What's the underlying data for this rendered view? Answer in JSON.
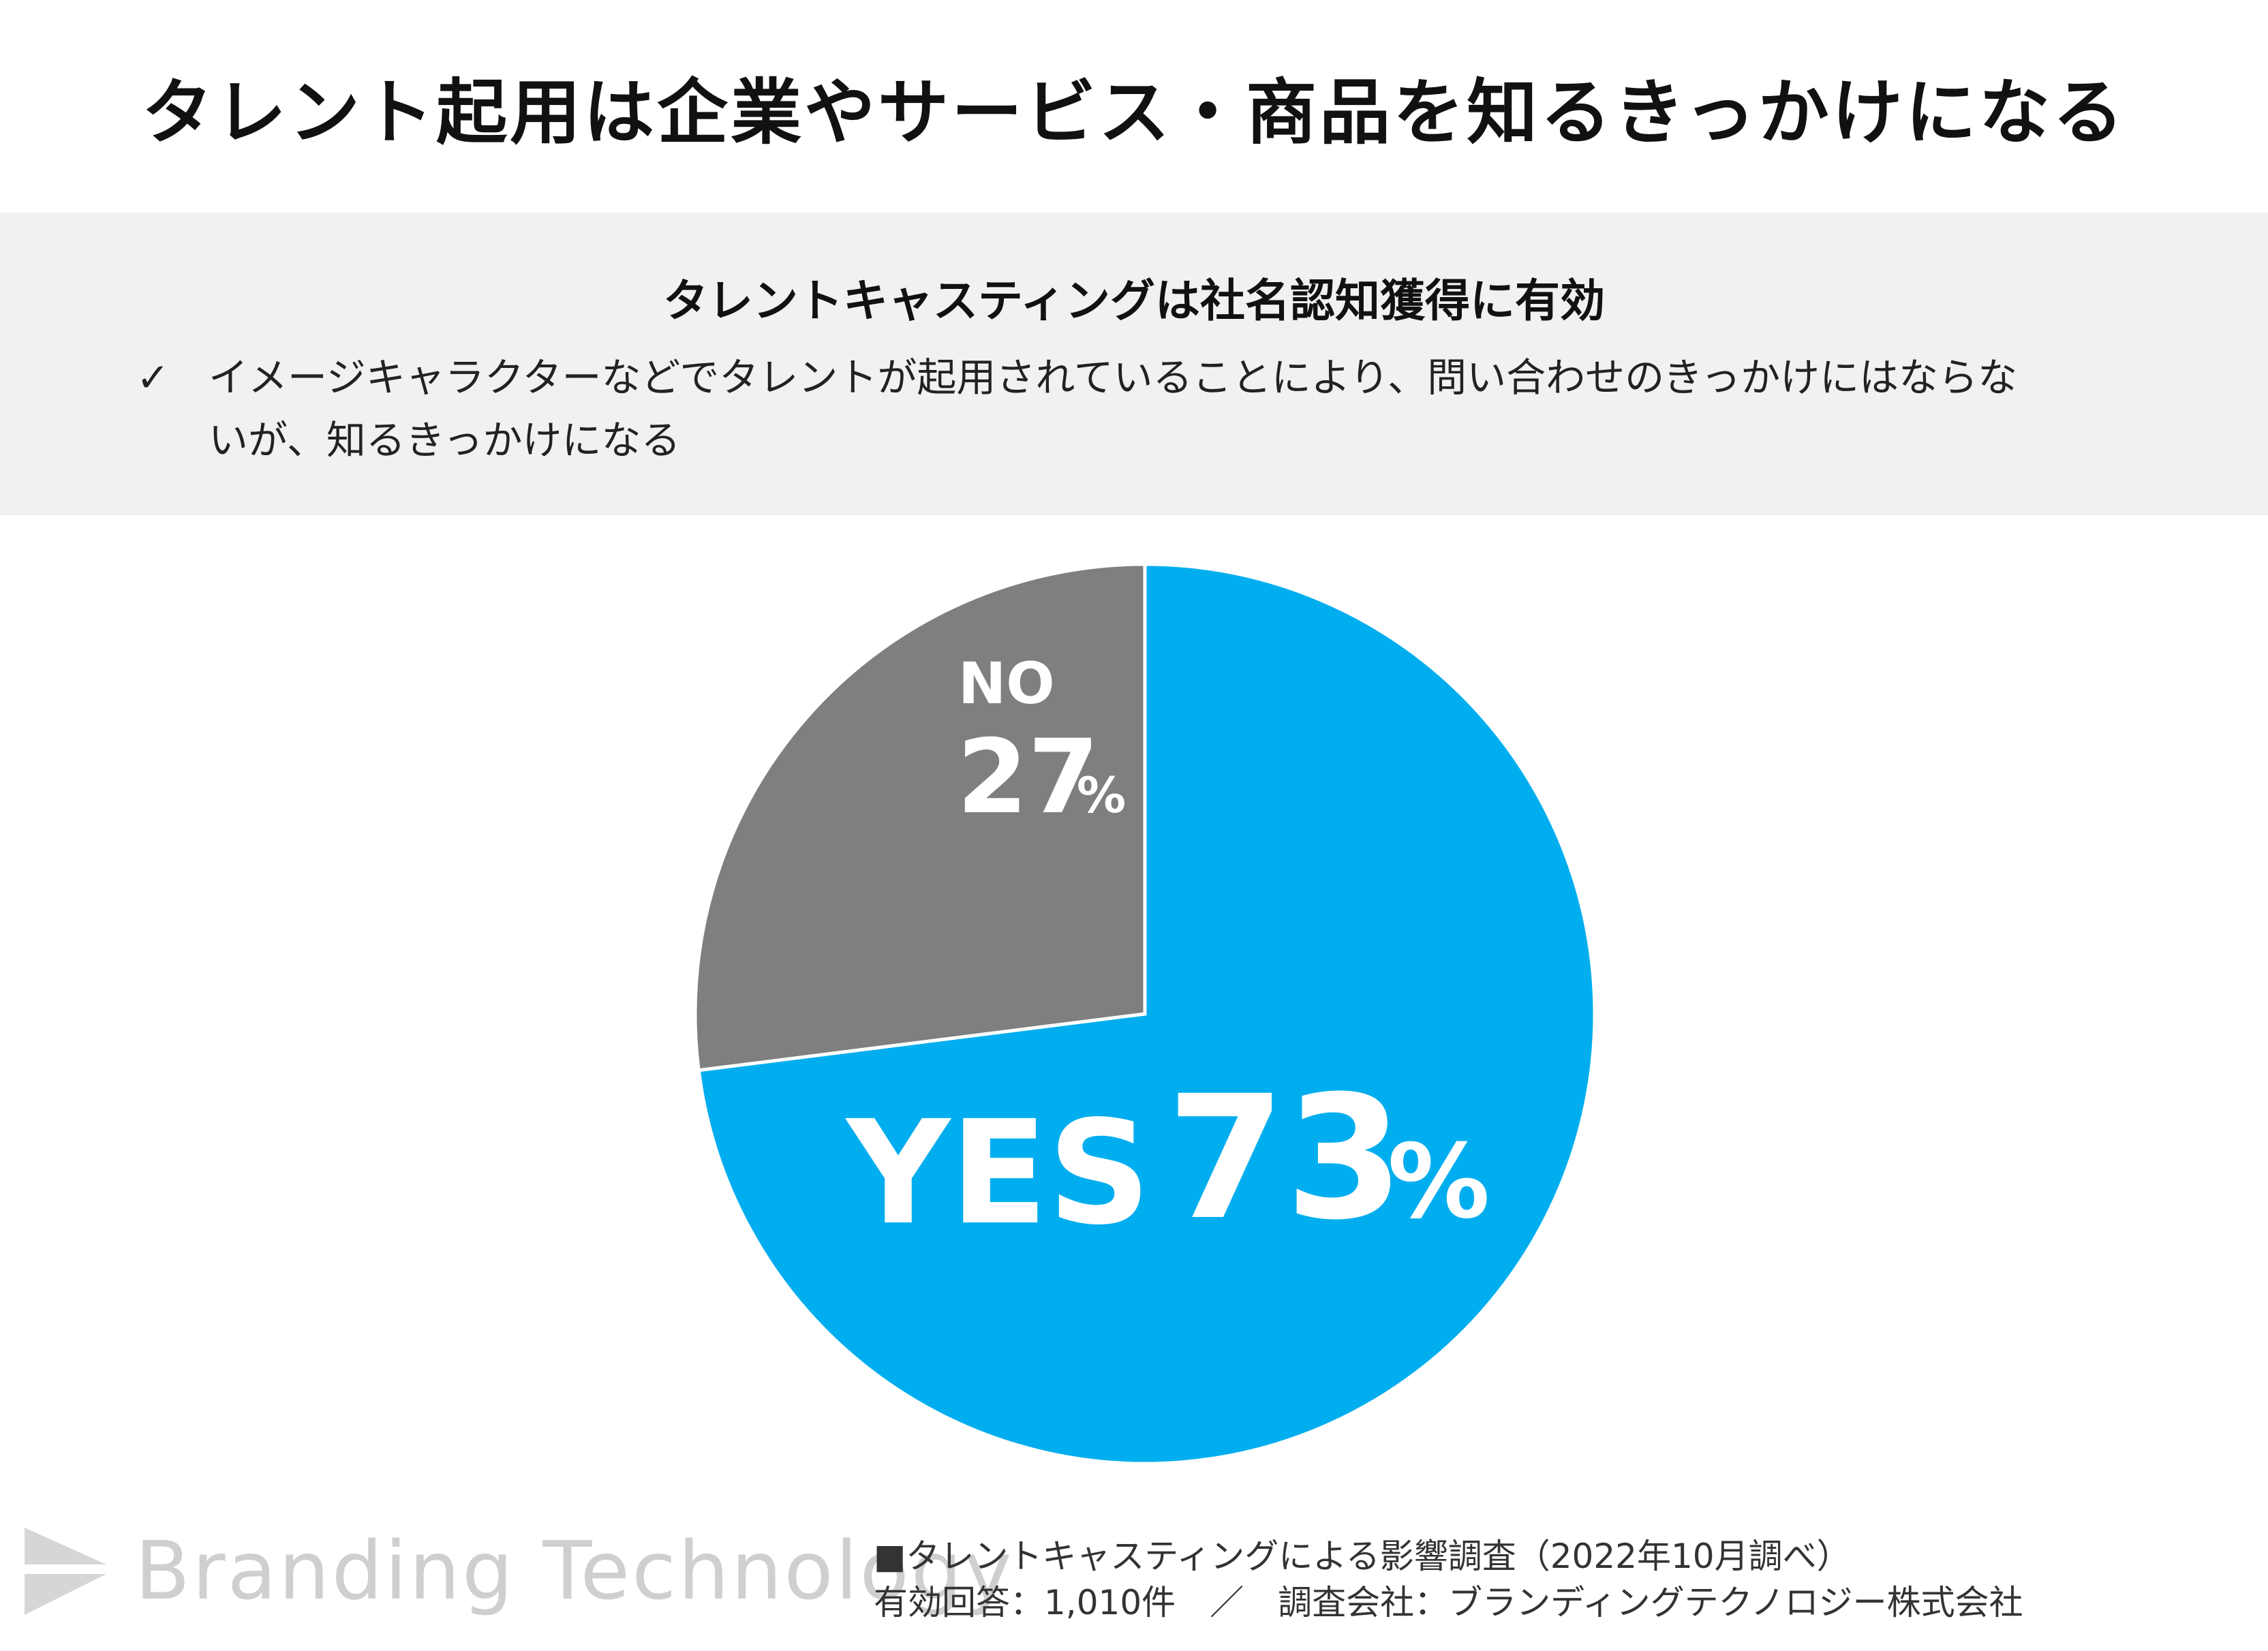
{
  "title": "タレント起用は企業やサービス・商品を知るきっかけになる",
  "summary": {
    "heading": "タレントキャスティングは社名認知獲得に有効",
    "check_icon": "checkmark-icon",
    "bullet_line1": "イメージキャラクターなどでタレントが起用されていることにより、問い合わせのきっかけにはならな",
    "bullet_line2": "いが、知るきっかけになる"
  },
  "chart_data": {
    "type": "pie",
    "slices": [
      {
        "label": "YES",
        "value": 73,
        "percent_text": "73",
        "unit": "%",
        "color": "#00aeef"
      },
      {
        "label": "NO",
        "value": 27,
        "percent_text": "27",
        "unit": "%",
        "color": "#7f7f7f"
      }
    ],
    "title": "",
    "legend": "none"
  },
  "footer": {
    "logo_text": "Branding Technology",
    "logo_icon": "branding-technology-logo-icon",
    "survey_line": "■タレントキャスティングによる影響調査（2022年10月調べ）",
    "responses_line": "有効回答：1,010件　／　調査会社：ブランディングテクノロジー株式会社"
  }
}
